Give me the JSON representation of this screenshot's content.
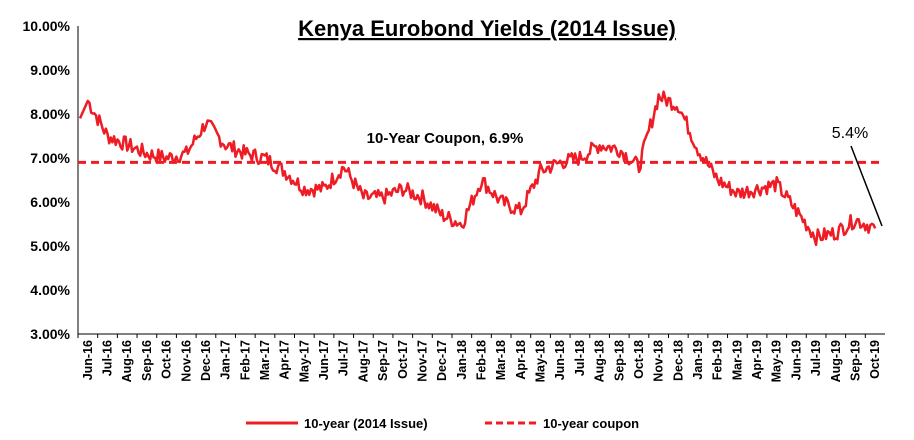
{
  "chart_data": {
    "type": "line",
    "title": "Kenya Eurobond Yields (2014 Issue)",
    "xlabel": "",
    "ylabel": "",
    "ylim": [
      3,
      10
    ],
    "y_ticks": [
      "3.00%",
      "4.00%",
      "5.00%",
      "6.00%",
      "7.00%",
      "8.00%",
      "9.00%",
      "10.00%"
    ],
    "y_tick_values": [
      3,
      4,
      5,
      6,
      7,
      8,
      9,
      10
    ],
    "categories": [
      "Jun-16",
      "Jul-16",
      "Aug-16",
      "Sep-16",
      "Oct-16",
      "Nov-16",
      "Dec-16",
      "Jan-17",
      "Feb-17",
      "Mar-17",
      "Apr-17",
      "May-17",
      "Jun-17",
      "Jul-17",
      "Aug-17",
      "Sep-17",
      "Oct-17",
      "Nov-17",
      "Dec-17",
      "Jan-18",
      "Feb-18",
      "Mar-18",
      "Apr-18",
      "May-18",
      "Jun-18",
      "Jul-18",
      "Aug-18",
      "Sep-18",
      "Oct-18",
      "Nov-18",
      "Dec-18",
      "Jan-19",
      "Feb-19",
      "Mar-19",
      "Apr-19",
      "May-19",
      "Jun-19",
      "Jul-19",
      "Aug-19",
      "Sep-19",
      "Oct-19"
    ],
    "grid": false,
    "legend_position": "bottom",
    "series": [
      {
        "name": "10-year (2014 Issue)",
        "color": "#EE1C25",
        "style": "solid",
        "values": [
          8.3,
          7.5,
          7.3,
          7.1,
          7.0,
          7.1,
          7.8,
          7.3,
          7.1,
          7.0,
          6.7,
          6.3,
          6.3,
          6.8,
          6.1,
          6.1,
          6.3,
          6.1,
          5.7,
          5.5,
          6.5,
          6.0,
          5.8,
          6.7,
          6.9,
          7.0,
          7.3,
          7.2,
          6.8,
          8.4,
          8.2,
          7.2,
          6.5,
          6.2,
          6.3,
          6.4,
          5.8,
          5.2,
          5.3,
          5.6,
          5.4
        ]
      },
      {
        "name": "10-year coupon",
        "color": "#EE1C25",
        "style": "dashed",
        "values": [
          6.9,
          6.9,
          6.9,
          6.9,
          6.9,
          6.9,
          6.9,
          6.9,
          6.9,
          6.9,
          6.9,
          6.9,
          6.9,
          6.9,
          6.9,
          6.9,
          6.9,
          6.9,
          6.9,
          6.9,
          6.9,
          6.9,
          6.9,
          6.9,
          6.9,
          6.9,
          6.9,
          6.9,
          6.9,
          6.9,
          6.9,
          6.9,
          6.9,
          6.9,
          6.9,
          6.9,
          6.9,
          6.9,
          6.9,
          6.9,
          6.9
        ]
      }
    ],
    "annotations": [
      {
        "text": "10-Year Coupon, 6.9%"
      },
      {
        "text": "5.4%"
      }
    ]
  }
}
